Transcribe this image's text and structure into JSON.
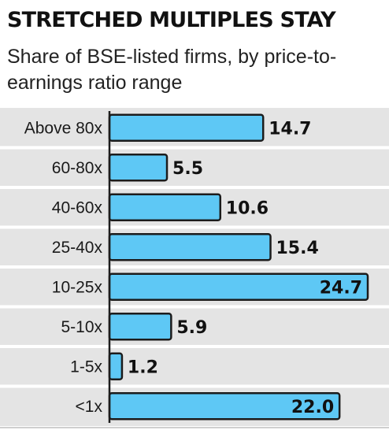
{
  "chart_data": {
    "type": "bar",
    "orientation": "horizontal",
    "title": "STRETCHED MULTIPLES STAY",
    "subtitle": "Share of BSE-listed firms, by price-to-earnings ratio range",
    "categories": [
      "Above 80x",
      "60-80x",
      "40-60x",
      "25-40x",
      "10-25x",
      "5-10x",
      "1-5x",
      "<1x"
    ],
    "values": [
      14.7,
      5.5,
      10.6,
      15.4,
      24.7,
      5.9,
      1.2,
      22.0
    ],
    "value_labels": [
      "14.7",
      "5.5",
      "10.6",
      "15.4",
      "24.7",
      "5.9",
      "1.2",
      "22.0"
    ],
    "xlim": [
      0,
      25
    ],
    "grid": false,
    "legend": "none",
    "colors": {
      "bar": "#5ec8f5",
      "bar_outline": "#1c1c1c",
      "row_band": "#e4e4e4"
    }
  }
}
